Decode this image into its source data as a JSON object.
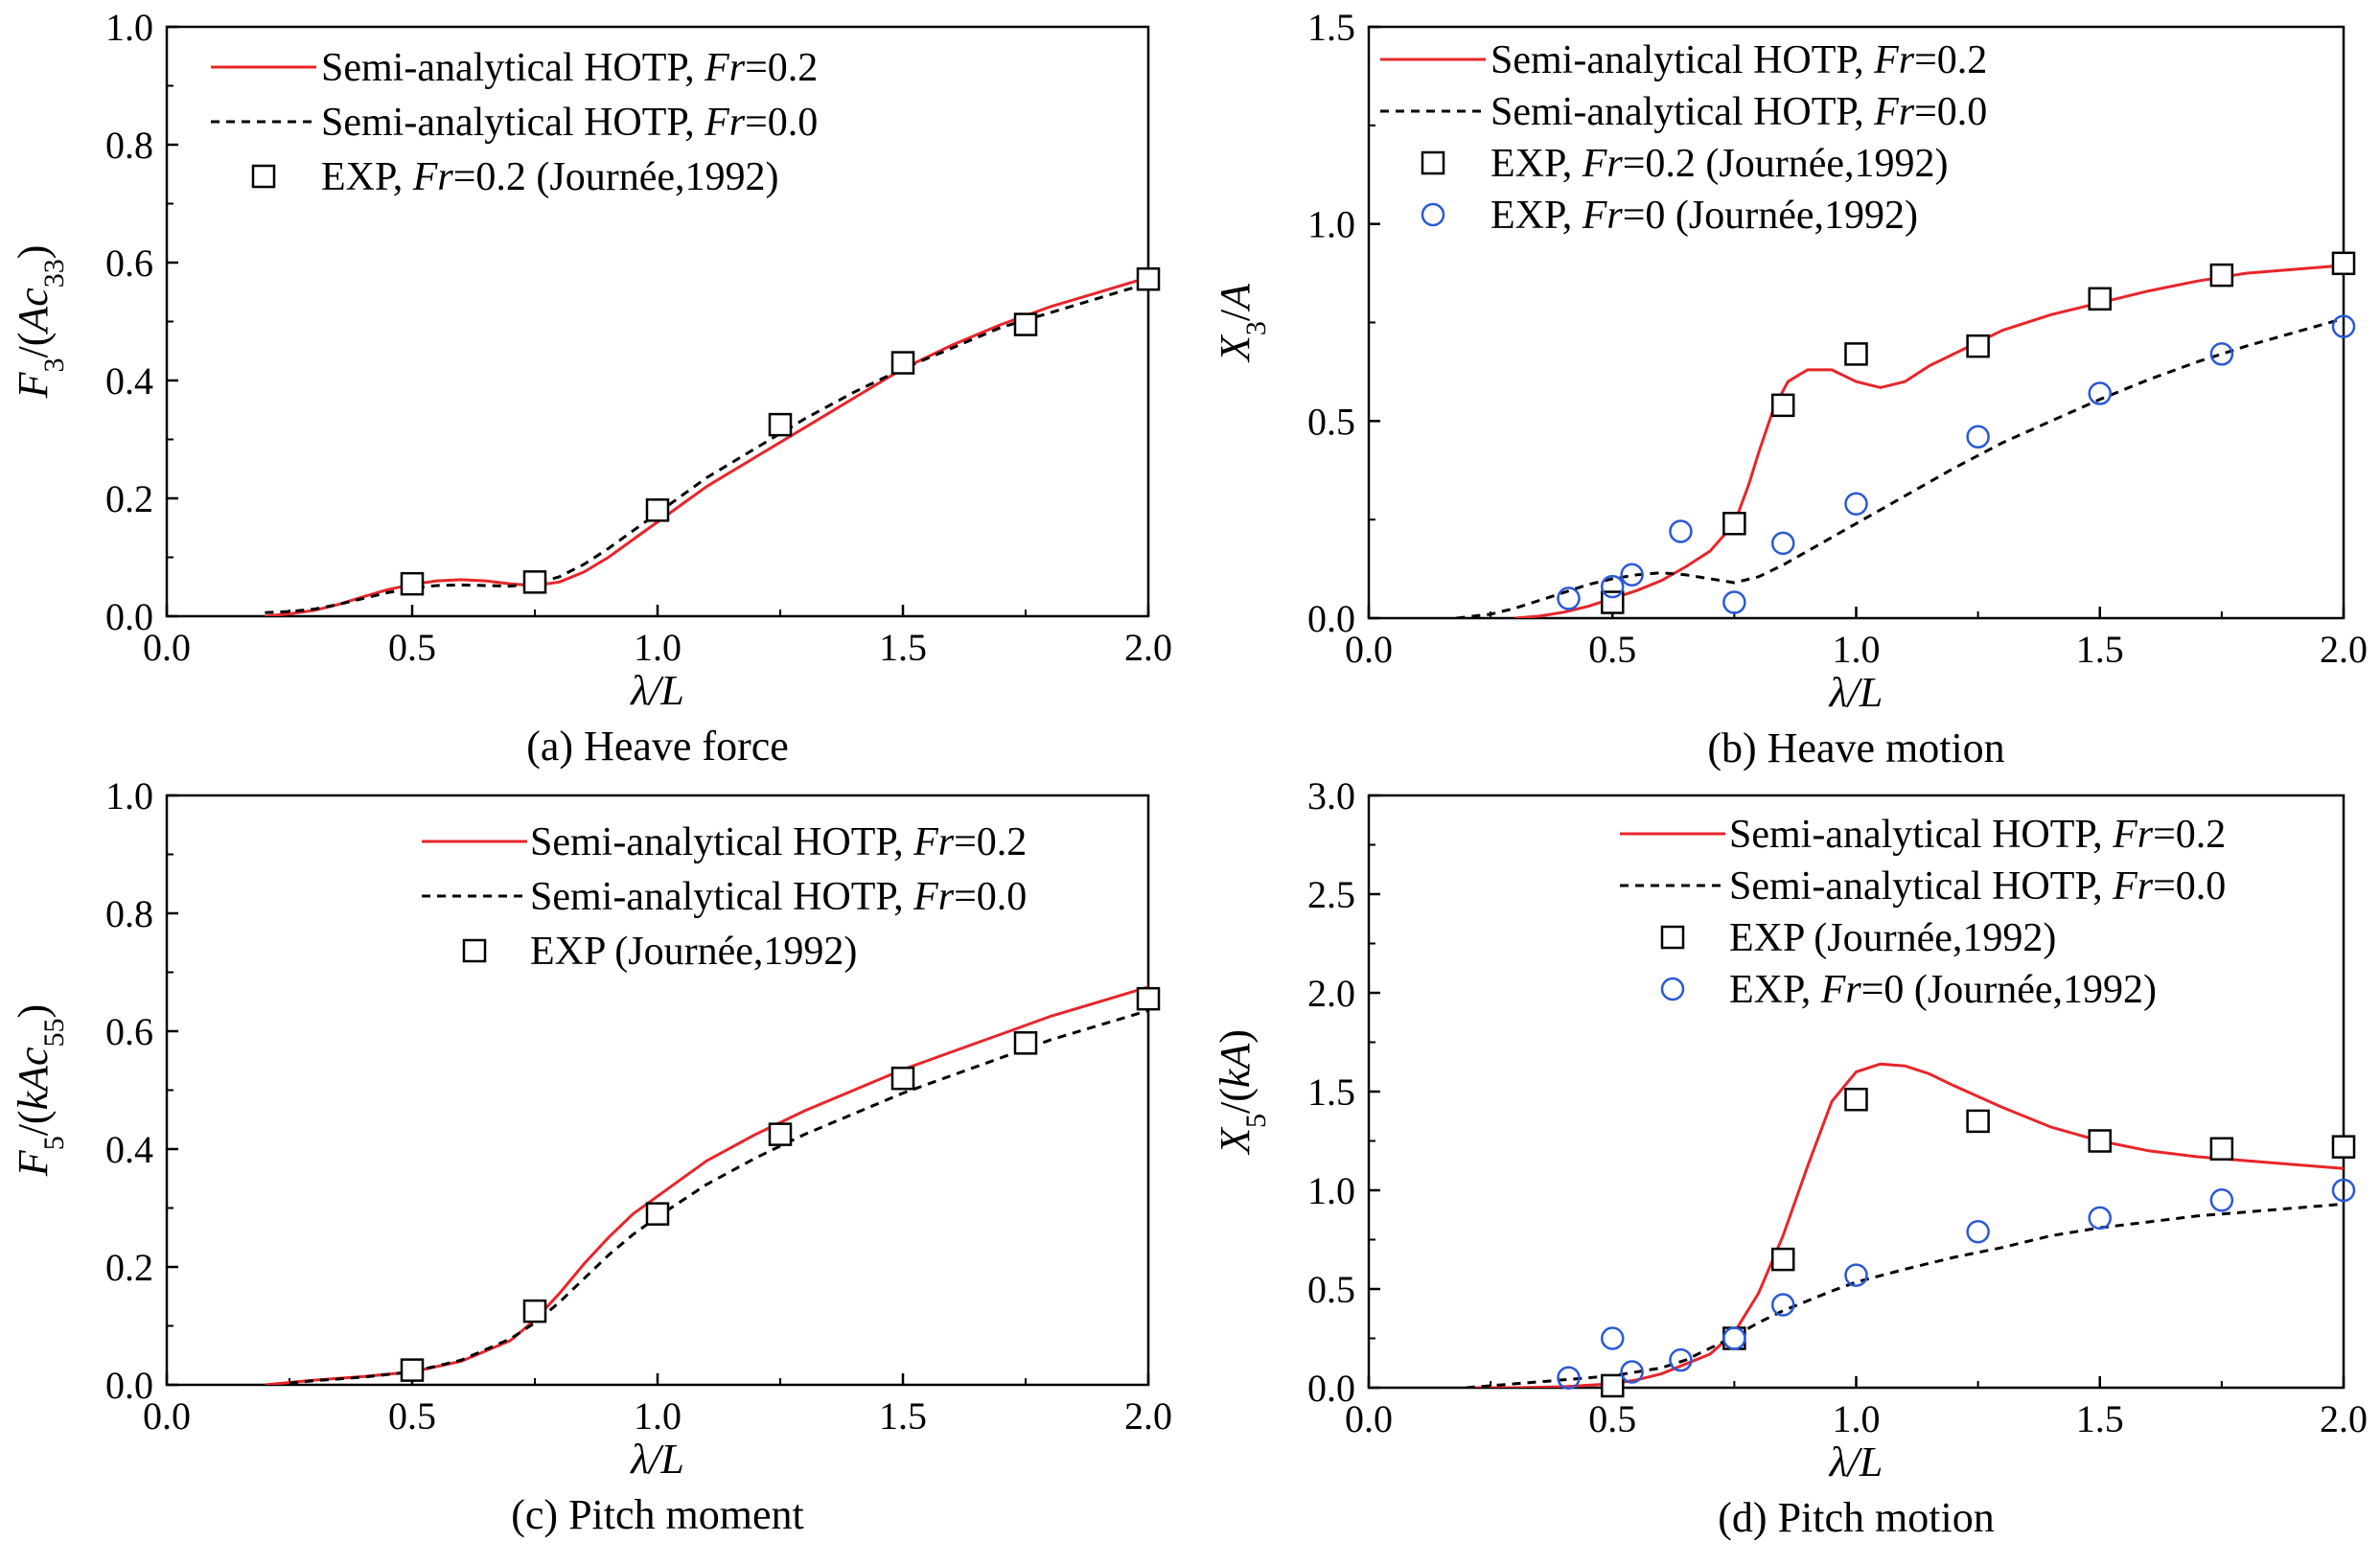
{
  "colors": {
    "hotp_fr02": "#e8252a",
    "hotp_fr00": "#000000",
    "exp_square": "#000000",
    "exp_circle": "#2a59d6"
  },
  "chart_data": [
    {
      "type": "line",
      "caption": "(a) Heave force",
      "xlabel": "λ/L",
      "ylabel": {
        "parts": [
          {
            "t": "F",
            "i": true
          },
          {
            "t": "3",
            "sub": true
          },
          {
            "t": "/("
          },
          {
            "t": "Ac",
            "i": true
          },
          {
            "t": "33",
            "sub": true
          },
          {
            "t": ")"
          }
        ]
      },
      "xlim": [
        0,
        2
      ],
      "ylim": [
        0,
        1
      ],
      "xticks": [
        "0.0",
        "0.5",
        "1.0",
        "1.5",
        "2.0"
      ],
      "yticks": [
        "0.0",
        "0.2",
        "0.4",
        "0.6",
        "0.8",
        "1.0"
      ],
      "legend_position": "top-left",
      "series": [
        {
          "name": "Semi-analytical HOTP, Fr=0.2",
          "label_parts": [
            {
              "t": "Semi-analytical HOTP, "
            },
            {
              "t": "Fr",
              "i": true
            },
            {
              "t": "=0.2"
            }
          ],
          "style": "solid-red",
          "x": [
            0.2,
            0.25,
            0.3,
            0.35,
            0.4,
            0.45,
            0.5,
            0.55,
            0.6,
            0.65,
            0.7,
            0.75,
            0.8,
            0.85,
            0.9,
            0.95,
            1.0,
            1.05,
            1.1,
            1.2,
            1.3,
            1.4,
            1.5,
            1.6,
            1.7,
            1.8,
            1.9,
            2.0
          ],
          "y": [
            0.0,
            0.004,
            0.01,
            0.02,
            0.033,
            0.045,
            0.054,
            0.06,
            0.062,
            0.06,
            0.055,
            0.052,
            0.058,
            0.075,
            0.1,
            0.13,
            0.16,
            0.19,
            0.22,
            0.27,
            0.32,
            0.37,
            0.42,
            0.46,
            0.495,
            0.525,
            0.55,
            0.575
          ]
        },
        {
          "name": "Semi-analytical HOTP, Fr=0.0",
          "label_parts": [
            {
              "t": "Semi-analytical HOTP, "
            },
            {
              "t": "Fr",
              "i": true
            },
            {
              "t": "=0.0"
            }
          ],
          "style": "dashed-black",
          "x": [
            0.2,
            0.25,
            0.3,
            0.35,
            0.4,
            0.45,
            0.5,
            0.55,
            0.6,
            0.65,
            0.7,
            0.75,
            0.8,
            0.85,
            0.9,
            0.95,
            1.0,
            1.05,
            1.1,
            1.2,
            1.3,
            1.4,
            1.5,
            1.6,
            1.7,
            1.8,
            1.9,
            2.0
          ],
          "y": [
            0.006,
            0.008,
            0.012,
            0.02,
            0.03,
            0.04,
            0.048,
            0.052,
            0.053,
            0.052,
            0.051,
            0.055,
            0.067,
            0.088,
            0.115,
            0.145,
            0.175,
            0.205,
            0.235,
            0.285,
            0.335,
            0.38,
            0.42,
            0.455,
            0.49,
            0.515,
            0.54,
            0.565
          ]
        },
        {
          "name": "EXP, Fr=0.2 (Journée,1992)",
          "label_parts": [
            {
              "t": "EXP, "
            },
            {
              "t": "Fr",
              "i": true
            },
            {
              "t": "=0.2 (Journée,1992)"
            }
          ],
          "style": "square",
          "x": [
            0.5,
            0.75,
            1.0,
            1.25,
            1.5,
            1.75,
            2.0
          ],
          "y": [
            0.055,
            0.058,
            0.18,
            0.325,
            0.43,
            0.495,
            0.572
          ]
        }
      ]
    },
    {
      "type": "line",
      "caption": "(b) Heave motion",
      "xlabel": "λ/L",
      "ylabel": {
        "parts": [
          {
            "t": "X",
            "i": true
          },
          {
            "t": "3",
            "sub": true
          },
          {
            "t": "/"
          },
          {
            "t": "A",
            "i": true
          }
        ]
      },
      "xlim": [
        0,
        2
      ],
      "ylim": [
        0,
        1.5
      ],
      "xticks": [
        "0.0",
        "0.5",
        "1.0",
        "1.5",
        "2.0"
      ],
      "yticks": [
        "0.0",
        "0.5",
        "1.0",
        "1.5"
      ],
      "legend_position": "top-left",
      "series": [
        {
          "name": "Semi-analytical HOTP, Fr=0.2",
          "label_parts": [
            {
              "t": "Semi-analytical HOTP, "
            },
            {
              "t": "Fr",
              "i": true
            },
            {
              "t": "=0.2"
            }
          ],
          "style": "solid-red",
          "x": [
            0.3,
            0.35,
            0.4,
            0.45,
            0.5,
            0.55,
            0.6,
            0.65,
            0.7,
            0.75,
            0.78,
            0.8,
            0.83,
            0.86,
            0.9,
            0.95,
            1.0,
            1.05,
            1.1,
            1.15,
            1.2,
            1.25,
            1.3,
            1.4,
            1.5,
            1.6,
            1.7,
            1.8,
            1.9,
            2.0
          ],
          "y": [
            0.0,
            0.005,
            0.015,
            0.03,
            0.05,
            0.07,
            0.095,
            0.13,
            0.17,
            0.24,
            0.34,
            0.42,
            0.53,
            0.6,
            0.63,
            0.63,
            0.6,
            0.585,
            0.6,
            0.64,
            0.67,
            0.7,
            0.73,
            0.77,
            0.8,
            0.83,
            0.855,
            0.875,
            0.885,
            0.895
          ]
        },
        {
          "name": "Semi-analytical HOTP, Fr=0.0",
          "label_parts": [
            {
              "t": "Semi-analytical HOTP, "
            },
            {
              "t": "Fr",
              "i": true
            },
            {
              "t": "=0.0"
            }
          ],
          "style": "dashed-black",
          "x": [
            0.18,
            0.25,
            0.3,
            0.35,
            0.4,
            0.45,
            0.5,
            0.55,
            0.6,
            0.65,
            0.7,
            0.75,
            0.8,
            0.85,
            0.9,
            0.95,
            1.0,
            1.1,
            1.2,
            1.3,
            1.4,
            1.5,
            1.6,
            1.7,
            1.8,
            1.9,
            2.0
          ],
          "y": [
            0.0,
            0.01,
            0.025,
            0.045,
            0.065,
            0.085,
            0.1,
            0.11,
            0.115,
            0.11,
            0.1,
            0.09,
            0.105,
            0.135,
            0.17,
            0.205,
            0.24,
            0.31,
            0.38,
            0.445,
            0.5,
            0.555,
            0.605,
            0.65,
            0.69,
            0.725,
            0.76
          ]
        },
        {
          "name": "EXP, Fr=0.2 (Journée,1992)",
          "label_parts": [
            {
              "t": "EXP, "
            },
            {
              "t": "Fr",
              "i": true
            },
            {
              "t": "=0.2 (Journée,1992)"
            }
          ],
          "style": "square",
          "x": [
            0.5,
            0.75,
            0.85,
            1.0,
            1.25,
            1.5,
            1.75,
            2.0
          ],
          "y": [
            0.04,
            0.24,
            0.54,
            0.67,
            0.69,
            0.81,
            0.87,
            0.9
          ]
        },
        {
          "name": "EXP, Fr=0 (Journée,1992)",
          "label_parts": [
            {
              "t": "EXP, "
            },
            {
              "t": "Fr",
              "i": true
            },
            {
              "t": "=0 (Journée,1992)"
            }
          ],
          "style": "circle",
          "x": [
            0.41,
            0.5,
            0.54,
            0.64,
            0.75,
            0.85,
            1.0,
            1.25,
            1.5,
            1.75,
            2.0
          ],
          "y": [
            0.05,
            0.08,
            0.11,
            0.22,
            0.04,
            0.19,
            0.29,
            0.46,
            0.57,
            0.67,
            0.74
          ]
        }
      ]
    },
    {
      "type": "line",
      "caption": "(c) Pitch moment",
      "xlabel": "λ/L",
      "ylabel": {
        "parts": [
          {
            "t": "F",
            "i": true
          },
          {
            "t": "5",
            "sub": true
          },
          {
            "t": "/("
          },
          {
            "t": "kAc",
            "i": true
          },
          {
            "t": "55",
            "sub": true
          },
          {
            "t": ")"
          }
        ]
      },
      "xlim": [
        0,
        2
      ],
      "ylim": [
        0,
        1
      ],
      "xticks": [
        "0.0",
        "0.5",
        "1.0",
        "1.5",
        "2.0"
      ],
      "yticks": [
        "0.0",
        "0.2",
        "0.4",
        "0.6",
        "0.8",
        "1.0"
      ],
      "legend_position": "top-right",
      "series": [
        {
          "name": "Semi-analytical HOTP, Fr=0.2",
          "label_parts": [
            {
              "t": "Semi-analytical HOTP, "
            },
            {
              "t": "Fr",
              "i": true
            },
            {
              "t": "=0.2"
            }
          ],
          "style": "solid-red",
          "x": [
            0.2,
            0.3,
            0.4,
            0.5,
            0.6,
            0.7,
            0.75,
            0.8,
            0.85,
            0.9,
            0.95,
            1.0,
            1.1,
            1.2,
            1.3,
            1.4,
            1.5,
            1.6,
            1.7,
            1.8,
            1.9,
            2.0
          ],
          "y": [
            0.0,
            0.008,
            0.014,
            0.022,
            0.04,
            0.075,
            0.11,
            0.155,
            0.205,
            0.25,
            0.29,
            0.32,
            0.38,
            0.425,
            0.465,
            0.5,
            0.535,
            0.565,
            0.595,
            0.625,
            0.65,
            0.675
          ]
        },
        {
          "name": "Semi-analytical HOTP, Fr=0.0",
          "label_parts": [
            {
              "t": "Semi-analytical HOTP, "
            },
            {
              "t": "Fr",
              "i": true
            },
            {
              "t": "=0.0"
            }
          ],
          "style": "dashed-black",
          "x": [
            0.25,
            0.3,
            0.4,
            0.5,
            0.6,
            0.7,
            0.75,
            0.8,
            0.85,
            0.9,
            0.95,
            1.0,
            1.1,
            1.2,
            1.3,
            1.4,
            1.5,
            1.6,
            1.7,
            1.8,
            1.9,
            2.0
          ],
          "y": [
            0.003,
            0.007,
            0.013,
            0.022,
            0.042,
            0.078,
            0.105,
            0.14,
            0.18,
            0.22,
            0.255,
            0.285,
            0.34,
            0.385,
            0.425,
            0.46,
            0.495,
            0.525,
            0.555,
            0.585,
            0.61,
            0.635
          ]
        },
        {
          "name": "EXP (Journée,1992)",
          "label_parts": [
            {
              "t": "EXP (Journée,1992)"
            }
          ],
          "style": "square",
          "x": [
            0.5,
            0.75,
            1.0,
            1.25,
            1.5,
            1.75,
            2.0
          ],
          "y": [
            0.025,
            0.125,
            0.29,
            0.425,
            0.52,
            0.58,
            0.655
          ]
        }
      ]
    },
    {
      "type": "line",
      "caption": "(d) Pitch motion",
      "xlabel": "λ/L",
      "ylabel": {
        "parts": [
          {
            "t": "X",
            "i": true
          },
          {
            "t": "5",
            "sub": true
          },
          {
            "t": "/("
          },
          {
            "t": "kA",
            "i": true
          },
          {
            "t": ")"
          }
        ]
      },
      "xlim": [
        0,
        2
      ],
      "ylim": [
        0,
        3
      ],
      "xticks": [
        "0.0",
        "0.5",
        "1.0",
        "1.5",
        "2.0"
      ],
      "yticks": [
        "0.0",
        "0.5",
        "1.0",
        "1.5",
        "2.0",
        "2.5",
        "3.0"
      ],
      "legend_position": "top-right",
      "series": [
        {
          "name": "Semi-analytical HOTP, Fr=0.2",
          "label_parts": [
            {
              "t": "Semi-analytical HOTP, "
            },
            {
              "t": "Fr",
              "i": true
            },
            {
              "t": "=0.2"
            }
          ],
          "style": "solid-red",
          "x": [
            0.2,
            0.3,
            0.4,
            0.5,
            0.55,
            0.6,
            0.65,
            0.7,
            0.75,
            0.8,
            0.85,
            0.9,
            0.95,
            1.0,
            1.05,
            1.1,
            1.15,
            1.2,
            1.3,
            1.4,
            1.5,
            1.6,
            1.7,
            1.8,
            1.9,
            2.0
          ],
          "y": [
            0.0,
            0.0,
            0.005,
            0.02,
            0.04,
            0.07,
            0.12,
            0.17,
            0.28,
            0.48,
            0.77,
            1.12,
            1.45,
            1.6,
            1.64,
            1.63,
            1.59,
            1.53,
            1.42,
            1.32,
            1.25,
            1.2,
            1.17,
            1.15,
            1.13,
            1.11
          ]
        },
        {
          "name": "Semi-analytical HOTP, Fr=0.0",
          "label_parts": [
            {
              "t": "Semi-analytical HOTP, "
            },
            {
              "t": "Fr",
              "i": true
            },
            {
              "t": "=0.0"
            }
          ],
          "style": "dashed-black",
          "x": [
            0.2,
            0.3,
            0.4,
            0.5,
            0.6,
            0.65,
            0.7,
            0.75,
            0.8,
            0.85,
            0.9,
            0.95,
            1.0,
            1.1,
            1.2,
            1.3,
            1.4,
            1.5,
            1.6,
            1.7,
            1.8,
            1.9,
            2.0
          ],
          "y": [
            0.0,
            0.02,
            0.04,
            0.06,
            0.1,
            0.14,
            0.2,
            0.26,
            0.33,
            0.39,
            0.44,
            0.49,
            0.535,
            0.6,
            0.66,
            0.71,
            0.77,
            0.81,
            0.84,
            0.87,
            0.89,
            0.91,
            0.93
          ]
        },
        {
          "name": "EXP (Journée,1992)",
          "label_parts": [
            {
              "t": "EXP (Journée,1992)"
            }
          ],
          "style": "square",
          "x": [
            0.5,
            0.75,
            0.85,
            1.0,
            1.25,
            1.5,
            1.75,
            2.0
          ],
          "y": [
            0.01,
            0.25,
            0.65,
            1.46,
            1.35,
            1.25,
            1.21,
            1.22
          ]
        },
        {
          "name": "EXP, Fr=0 (Journée,1992)",
          "label_parts": [
            {
              "t": "EXP, "
            },
            {
              "t": "Fr",
              "i": true
            },
            {
              "t": "=0 (Journée,1992)"
            }
          ],
          "style": "circle",
          "x": [
            0.41,
            0.5,
            0.54,
            0.64,
            0.75,
            0.85,
            1.0,
            1.25,
            1.5,
            1.75,
            2.0
          ],
          "y": [
            0.05,
            0.25,
            0.08,
            0.14,
            0.25,
            0.42,
            0.57,
            0.79,
            0.86,
            0.95,
            1.0
          ]
        }
      ]
    }
  ]
}
